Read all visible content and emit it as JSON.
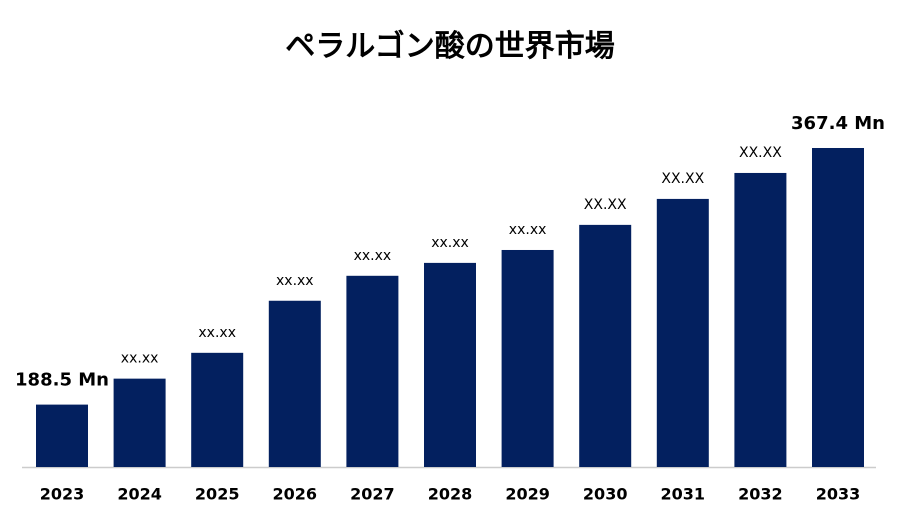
{
  "chart_data": {
    "type": "bar",
    "title": "ペラルゴン酸の世界市場",
    "categories": [
      "2023",
      "2024",
      "2025",
      "2026",
      "2027",
      "2028",
      "2029",
      "2030",
      "2031",
      "2032",
      "2033"
    ],
    "values": [
      188.5,
      206.6,
      224.6,
      260.9,
      278.3,
      287.3,
      296.3,
      313.8,
      331.9,
      350.0,
      367.4
    ],
    "value_labels": [
      "188.5 Mn",
      "xx.xx",
      "xx.xx",
      "xx.xx",
      "xx.xx",
      "xx.xx",
      "xx.xx",
      "XX.XX",
      "XX.XX",
      "XX.XX",
      "367.4 Mn"
    ],
    "color": "#03205f",
    "ylim": [
      145,
      372
    ]
  }
}
